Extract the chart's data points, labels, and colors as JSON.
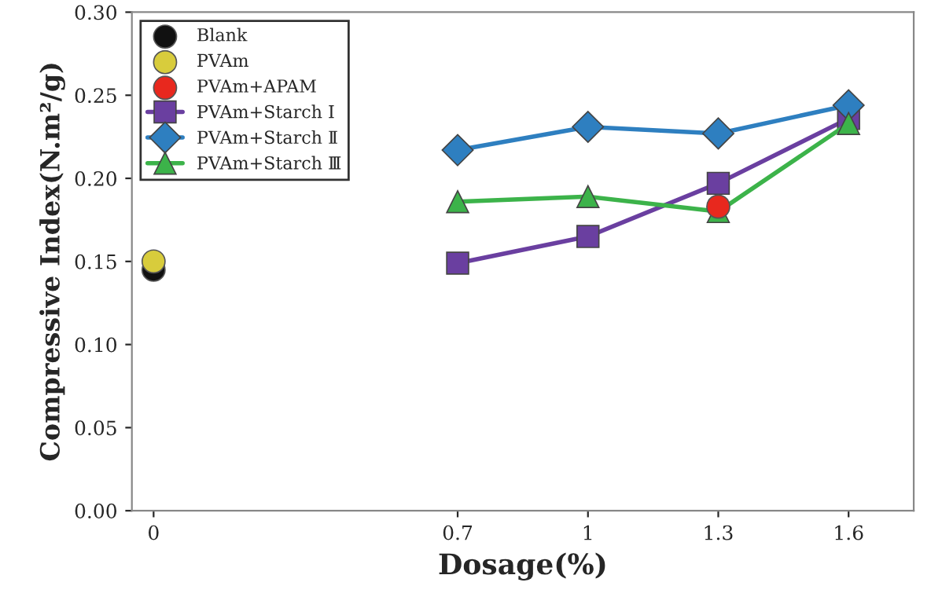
{
  "chart_data": {
    "type": "line",
    "xlabel": "Dosage(%)",
    "ylabel": "Compressive Index(N.m²/g)",
    "xlim": [
      -0.05,
      1.75
    ],
    "xticks": [
      0,
      0.7,
      1,
      1.3,
      1.6
    ],
    "ylim": [
      0,
      0.3
    ],
    "yticks": [
      {
        "value": 0,
        "label": "0.00"
      },
      {
        "value": 0.05,
        "label": "0.05"
      },
      {
        "value": 0.1,
        "label": "0.10"
      },
      {
        "value": 0.15,
        "label": "0.15"
      },
      {
        "value": 0.2,
        "label": "0.20"
      },
      {
        "value": 0.25,
        "label": "0.25"
      },
      {
        "value": 0.3,
        "label": "0.30"
      }
    ],
    "grid": false,
    "legend": "top left",
    "series": [
      {
        "name": "Blank",
        "type": "scatter",
        "marker": "circle",
        "color": "#111111",
        "x": [
          0
        ],
        "values": [
          0.145
        ]
      },
      {
        "name": "PVAm",
        "type": "scatter",
        "marker": "circle",
        "color": "#d8cc3c",
        "x": [
          0
        ],
        "values": [
          0.15
        ]
      },
      {
        "name": "PVAm+APAM",
        "type": "scatter",
        "marker": "circle",
        "color": "#e8281e",
        "x": [
          1.3
        ],
        "values": [
          0.183
        ]
      },
      {
        "name": "PVAm+Starch Ⅰ",
        "marker": "square",
        "color": "#6a3fa0",
        "x": [
          0.7,
          1,
          1.3,
          1.6
        ],
        "values": [
          0.149,
          0.165,
          0.197,
          0.236
        ]
      },
      {
        "name": "PVAm+Starch Ⅱ",
        "marker": "diamond",
        "color": "#2e7fc0",
        "x": [
          0.7,
          1,
          1.3,
          1.6
        ],
        "values": [
          0.217,
          0.231,
          0.227,
          0.244
        ]
      },
      {
        "name": "PVAm+Starch Ⅲ",
        "marker": "triangle",
        "color": "#3cb34a",
        "x": [
          0.7,
          1,
          1.3,
          1.6
        ],
        "values": [
          0.186,
          0.189,
          0.18,
          0.233
        ]
      }
    ]
  }
}
